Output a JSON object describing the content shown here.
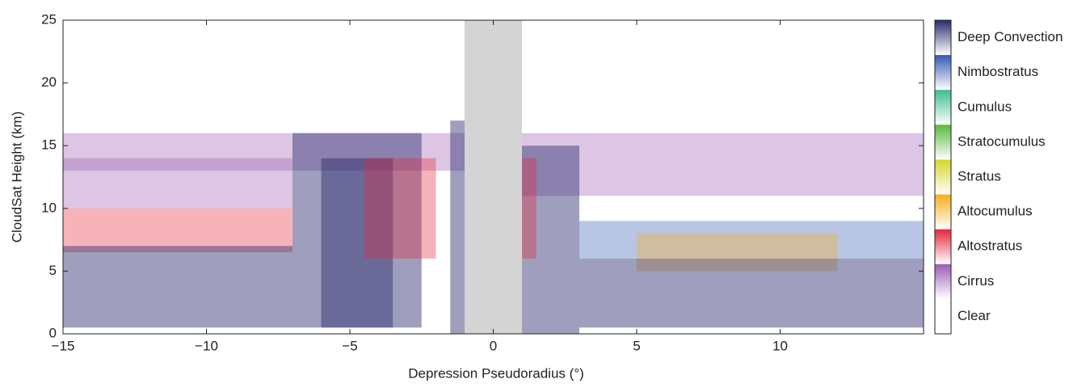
{
  "chart_data": {
    "type": "cross-section",
    "x_label": "Depression Pseudoradius (°)",
    "y_label": "CloudSat Height (km)",
    "xlim": [
      -15,
      15
    ],
    "ylim": [
      0,
      25
    ],
    "xticks": [
      {
        "value": -15,
        "label": "−15"
      },
      {
        "value": -10,
        "label": "−10"
      },
      {
        "value": -5,
        "label": "−5"
      },
      0,
      5,
      10
    ],
    "yticks": [
      0,
      5,
      10,
      15,
      20,
      25
    ],
    "classes": [
      {
        "name": "Deep Convection",
        "color": "#2a2a6c"
      },
      {
        "name": "Nimbostratus",
        "color": "#3558b5"
      },
      {
        "name": "Cumulus",
        "color": "#3dbd8c"
      },
      {
        "name": "Stratocumulus",
        "color": "#58b93a"
      },
      {
        "name": "Stratus",
        "color": "#d6d62a"
      },
      {
        "name": "Altocumulus",
        "color": "#f5ae1c"
      },
      {
        "name": "Altostratus",
        "color": "#e52638"
      },
      {
        "name": "Cirrus",
        "color": "#9a5bb3"
      },
      {
        "name": "Clear",
        "color": "#ffffff"
      }
    ],
    "missing": {
      "x": [
        -1,
        1
      ],
      "color": "#d4d4d4"
    },
    "regions": [
      {
        "class": 7,
        "x": [
          -15,
          -1
        ],
        "y": [
          13,
          16
        ]
      },
      {
        "class": 7,
        "x": [
          -15,
          -7
        ],
        "y": [
          10,
          14
        ]
      },
      {
        "class": 6,
        "x": [
          -15,
          -7
        ],
        "y": [
          6.5,
          10
        ]
      },
      {
        "class": 0,
        "x": [
          -15,
          -7
        ],
        "y": [
          0.5,
          7
        ]
      },
      {
        "class": 0,
        "x": [
          -7,
          -2.5
        ],
        "y": [
          0.5,
          16
        ]
      },
      {
        "class": 0,
        "x": [
          -6,
          -3.5
        ],
        "y": [
          0.5,
          14
        ]
      },
      {
        "class": 6,
        "x": [
          -4.5,
          -2
        ],
        "y": [
          6,
          14
        ]
      },
      {
        "class": 0,
        "x": [
          -1.5,
          -1
        ],
        "y": [
          0,
          17
        ]
      },
      {
        "class": 7,
        "x": [
          1,
          15
        ],
        "y": [
          11,
          16
        ]
      },
      {
        "class": 0,
        "x": [
          1,
          3
        ],
        "y": [
          0,
          15
        ]
      },
      {
        "class": 6,
        "x": [
          1,
          1.5
        ],
        "y": [
          6,
          14
        ]
      },
      {
        "class": 1,
        "x": [
          3,
          15
        ],
        "y": [
          6,
          9
        ]
      },
      {
        "class": 5,
        "x": [
          5,
          12
        ],
        "y": [
          5,
          8
        ]
      },
      {
        "class": 0,
        "x": [
          3,
          15
        ],
        "y": [
          0.5,
          6
        ]
      }
    ]
  }
}
